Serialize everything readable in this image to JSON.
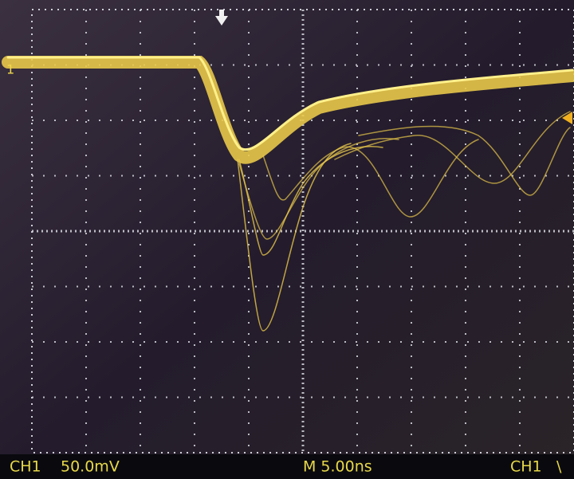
{
  "markers": {
    "channel_marker": "1"
  },
  "status_bar": {
    "channel": "CH1",
    "volts_per_div": "50.0mV",
    "timebase": "M 5.00ns",
    "trigger_source": "CH1",
    "trigger_slope": "\\"
  }
}
